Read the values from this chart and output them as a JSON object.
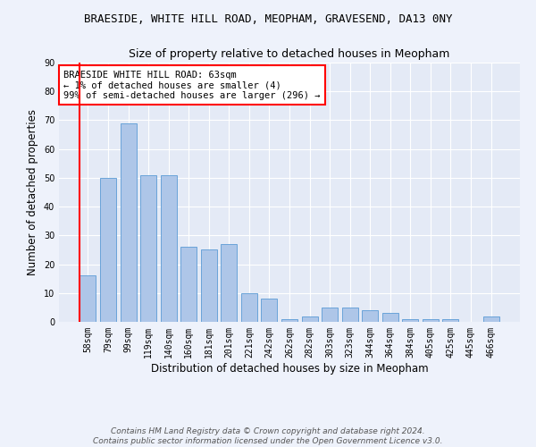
{
  "title": "BRAESIDE, WHITE HILL ROAD, MEOPHAM, GRAVESEND, DA13 0NY",
  "subtitle": "Size of property relative to detached houses in Meopham",
  "xlabel": "Distribution of detached houses by size in Meopham",
  "ylabel": "Number of detached properties",
  "categories": [
    "58sqm",
    "79sqm",
    "99sqm",
    "119sqm",
    "140sqm",
    "160sqm",
    "181sqm",
    "201sqm",
    "221sqm",
    "242sqm",
    "262sqm",
    "282sqm",
    "303sqm",
    "323sqm",
    "344sqm",
    "364sqm",
    "384sqm",
    "405sqm",
    "425sqm",
    "445sqm",
    "466sqm"
  ],
  "values": [
    16,
    50,
    69,
    51,
    51,
    26,
    25,
    27,
    10,
    8,
    1,
    2,
    5,
    5,
    4,
    3,
    1,
    1,
    1,
    0,
    2
  ],
  "bar_color": "#aec6e8",
  "bar_edge_color": "#5b9bd5",
  "annotation_box_text": "BRAESIDE WHITE HILL ROAD: 63sqm\n← 1% of detached houses are smaller (4)\n99% of semi-detached houses are larger (296) →",
  "ylim": [
    0,
    90
  ],
  "yticks": [
    0,
    10,
    20,
    30,
    40,
    50,
    60,
    70,
    80,
    90
  ],
  "footer_text": "Contains HM Land Registry data © Crown copyright and database right 2024.\nContains public sector information licensed under the Open Government Licence v3.0.",
  "background_color": "#eef2fb",
  "plot_background_color": "#e4eaf6",
  "grid_color": "#ffffff",
  "title_fontsize": 9,
  "subtitle_fontsize": 9,
  "axis_label_fontsize": 8.5,
  "tick_fontsize": 7,
  "annotation_fontsize": 7.5,
  "footer_fontsize": 6.5
}
